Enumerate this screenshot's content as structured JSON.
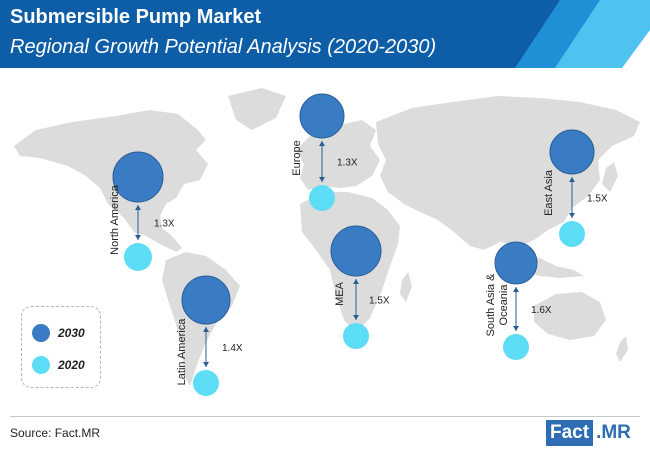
{
  "header": {
    "title": "Submersible Pump Market",
    "subtitle": "Regional Growth Potential Analysis (2020-2030)"
  },
  "colors": {
    "header_dark": "#0d5da7",
    "header_mid": "#1f8fd6",
    "header_light": "#4fc3ef",
    "circle_2030": "#3a7cc3",
    "circle_2030_stroke": "#2a5d96",
    "circle_2020": "#5ddcf6",
    "map": "#dcdcdc"
  },
  "chart_data": {
    "type": "map-bubble",
    "unit": "X",
    "regions": [
      {
        "name": "North America",
        "growth": "1.3X"
      },
      {
        "name": "Latin America",
        "growth": "1.4X"
      },
      {
        "name": "Europe",
        "growth": "1.3X"
      },
      {
        "name": "MEA",
        "growth": "1.5X"
      },
      {
        "name": "East Asia",
        "growth": "1.5X"
      },
      {
        "name": "South Asia &",
        "name_line2": "Oceania",
        "growth": "1.6X"
      }
    ],
    "legend": [
      {
        "label": "2030",
        "color": "#3a7cc3"
      },
      {
        "label": "2020",
        "color": "#5ddcf6"
      }
    ]
  },
  "footer": {
    "source": "Source: Fact.MR",
    "logo_part1": "Fact",
    "logo_part2": ".MR"
  }
}
